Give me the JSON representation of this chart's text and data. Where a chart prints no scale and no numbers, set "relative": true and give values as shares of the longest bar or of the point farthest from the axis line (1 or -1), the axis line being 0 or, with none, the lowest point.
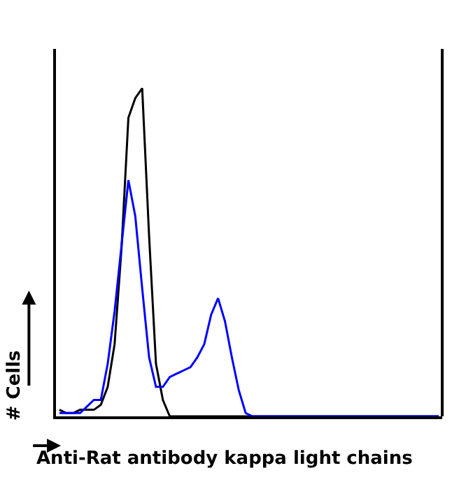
{
  "chart_data": {
    "type": "line",
    "relative": true,
    "xlabel": "Anti-Rat antibody kappa light chains",
    "ylabel": "# Cells",
    "marker": "none",
    "categories": [
      null,
      null,
      null,
      null,
      null,
      null,
      null,
      null,
      null,
      null,
      null,
      null,
      null,
      null,
      null,
      null,
      null,
      null,
      null,
      null,
      null,
      null,
      null,
      null,
      null,
      null,
      null,
      null,
      null,
      null,
      null,
      null,
      null,
      null,
      null,
      null,
      null,
      null,
      null,
      null,
      null,
      null,
      null,
      null,
      null,
      null,
      null,
      null,
      null,
      null,
      null,
      null,
      null,
      null,
      null,
      null
    ],
    "series": [
      {
        "color": "#000000",
        "values": [
          0.02,
          0.01,
          0.01,
          0.02,
          0.02,
          0.02,
          0.035,
          0.09,
          0.22,
          0.51,
          0.91,
          0.97,
          1.0,
          0.55,
          0.16,
          0.05,
          0,
          0,
          0,
          0,
          0,
          0,
          0,
          0,
          0,
          0,
          0,
          0,
          0,
          0,
          0,
          0,
          0,
          0,
          0,
          0,
          0,
          0,
          0,
          0,
          0,
          0,
          0,
          0,
          0,
          0,
          0,
          0,
          0,
          0,
          0,
          0,
          0,
          0,
          0,
          0
        ]
      },
      {
        "color": "#0000ff",
        "values": [
          0.01,
          0.01,
          0.01,
          0.01,
          0.03,
          0.05,
          0.05,
          0.16,
          0.32,
          0.52,
          0.72,
          0.61,
          0.39,
          0.18,
          0.09,
          0.09,
          0.12,
          0.13,
          0.14,
          0.15,
          0.18,
          0.22,
          0.31,
          0.36,
          0.29,
          0.18,
          0.08,
          0.01,
          0,
          0,
          0,
          0,
          0,
          0,
          0,
          0,
          0,
          0,
          0,
          0,
          0,
          0,
          0,
          0,
          0,
          0,
          0,
          0,
          0,
          0,
          0,
          0,
          0,
          0,
          0,
          0
        ]
      }
    ]
  }
}
